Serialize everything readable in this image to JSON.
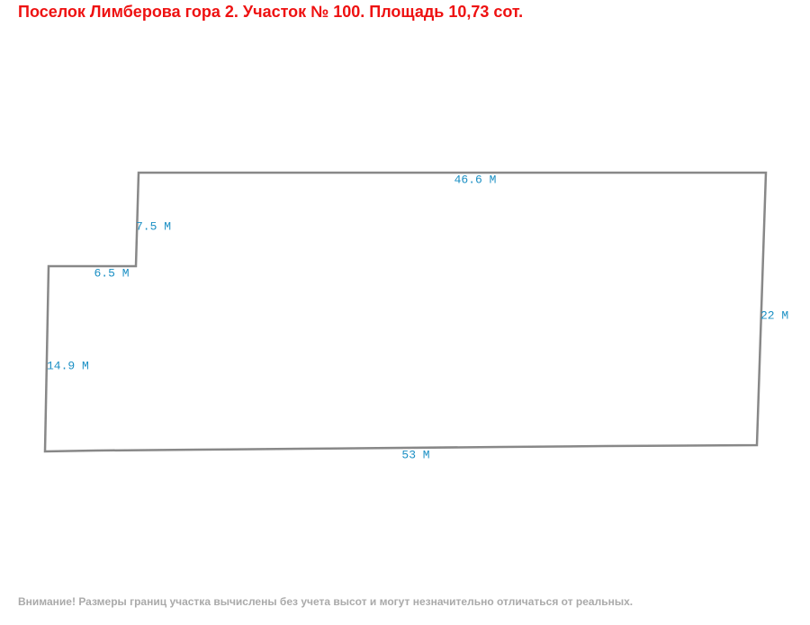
{
  "header": {
    "title": "Поселок Лимберова гора 2. Участок № 100. Площадь 10,73 сот."
  },
  "plot": {
    "edges": [
      {
        "label": "46.6 М"
      },
      {
        "label": "22 М"
      },
      {
        "label": "53 М"
      },
      {
        "label": "14.9 М"
      },
      {
        "label": "6.5 М"
      },
      {
        "label": "7.5 М"
      }
    ]
  },
  "footer": {
    "note": "Внимание! Размеры границ участка вычислены без учета высот и могут незначительно отличаться от реальных."
  }
}
